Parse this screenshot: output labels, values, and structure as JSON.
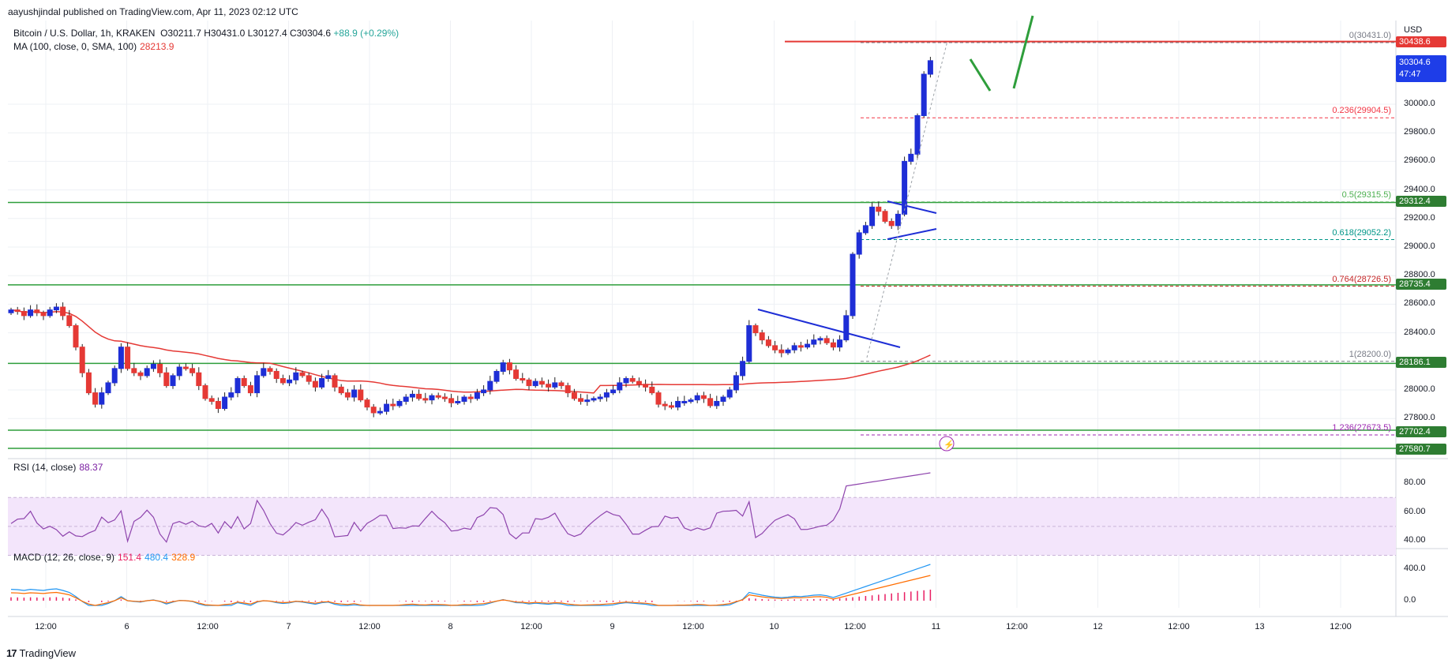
{
  "header": {
    "credit": "aayushjindal published on TradingView.com, Apr 11, 2023 02:12 UTC",
    "symbol": "Bitcoin / U.S. Dollar, 1h, KRAKEN",
    "ohlc": "O30211.7  H30431.0  L30127.4  C30304.6",
    "change": "+88.9 (+0.29%)"
  },
  "indicators": {
    "ma_label": "MA (100, close, 0, SMA, 100)",
    "ma_value": "28213.9",
    "rsi_label": "RSI (14, close)",
    "rsi_value": "88.37",
    "macd_label": "MACD (12, 26, close, 9)",
    "macd_hist": "151.4",
    "macd_line": "480.4",
    "macd_signal": "328.9"
  },
  "footer": {
    "brand": "TradingView",
    "mark": "17"
  },
  "price_axis": {
    "currency": "USD",
    "labels": [
      "30000.0",
      "29800.0",
      "29600.0",
      "29400.0",
      "29200.0",
      "29000.0",
      "28800.0",
      "28600.0",
      "28400.0",
      "28000.0",
      "27800.0"
    ],
    "tags": [
      {
        "text": "30438.6",
        "color": "red"
      },
      {
        "text": "30304.6",
        "text2": "47:47",
        "color": "blue"
      },
      {
        "text": "29312.4",
        "color": "green"
      },
      {
        "text": "28735.4",
        "color": "green"
      },
      {
        "text": "28186.1",
        "color": "green"
      },
      {
        "text": "27702.4",
        "color": "green"
      },
      {
        "text": "27580.7",
        "color": "green"
      }
    ]
  },
  "rsi_axis": [
    "80.00",
    "60.00",
    "40.00"
  ],
  "macd_axis": [
    "400.0",
    "0.0"
  ],
  "time_axis": [
    "12:00",
    "6",
    "12:00",
    "7",
    "12:00",
    "8",
    "12:00",
    "9",
    "12:00",
    "10",
    "12:00",
    "11",
    "12:00",
    "12",
    "12:00",
    "13",
    "12:00"
  ],
  "fib_levels": [
    {
      "label": "0(30431.0)",
      "color": "#787b86"
    },
    {
      "label": "0.236(29904.5)",
      "color": "#f23645"
    },
    {
      "label": "0.5(29315.5)",
      "color": "#4caf50"
    },
    {
      "label": "0.618(29052.2)",
      "color": "#009688"
    },
    {
      "label": "0.764(28726.5)",
      "color": "#c62828"
    },
    {
      "label": "1(28200.0)",
      "color": "#787b86"
    },
    {
      "label": "1.236(27673.5)",
      "color": "#9c27b0"
    }
  ],
  "colors": {
    "bull": "#1e2ed6",
    "bear": "#e53935",
    "ma": "#e53935",
    "support": "#2e9e3b",
    "resistance": "#e53935",
    "rsi": "#8e44ad",
    "macd": "#2196f3",
    "signal": "#ff6d00",
    "histogram": "#e91e63"
  },
  "chart_data": {
    "type": "candlestick",
    "title": "Bitcoin / U.S. Dollar, 1h, KRAKEN",
    "ylabel": "USD",
    "ylim": [
      27450,
      30700
    ],
    "x_ticks": [
      "12:00",
      "6",
      "12:00",
      "7",
      "12:00",
      "8",
      "12:00",
      "9",
      "12:00",
      "10",
      "12:00",
      "11",
      "12:00",
      "12",
      "12:00",
      "13",
      "12:00"
    ],
    "series": [
      {
        "name": "MA (100, close, 0, SMA, 100)",
        "last": 28213.9
      },
      {
        "name": "RSI (14, close)",
        "last": 88.37
      },
      {
        "name": "MACD (12, 26, close, 9)",
        "histogram": 151.4,
        "macd": 480.4,
        "signal": 328.9
      }
    ],
    "horizontal_levels": [
      30438.6,
      29312.4,
      28735.4,
      28186.1,
      27702.4,
      27580.7
    ],
    "fibonacci": [
      {
        "level": 0,
        "price": 30431.0
      },
      {
        "level": 0.236,
        "price": 29904.5
      },
      {
        "level": 0.5,
        "price": 29315.5
      },
      {
        "level": 0.618,
        "price": 29052.2
      },
      {
        "level": 0.764,
        "price": 28726.5
      },
      {
        "level": 1,
        "price": 28200.0
      },
      {
        "level": 1.236,
        "price": 27673.5
      }
    ],
    "last_close": 30304.6,
    "closes": [
      28560,
      28550,
      28520,
      28560,
      28540,
      28520,
      28560,
      28580,
      28520,
      28450,
      28300,
      28120,
      27980,
      27900,
      27980,
      28050,
      28150,
      28300,
      28150,
      28120,
      28100,
      28150,
      28180,
      28120,
      28030,
      28100,
      28160,
      28150,
      28120,
      28030,
      27940,
      27920,
      27870,
      27950,
      27980,
      28080,
      28030,
      27980,
      28100,
      28150,
      28130,
      28080,
      28050,
      28070,
      28120,
      28100,
      28060,
      28020,
      28080,
      28100,
      28020,
      27980,
      27950,
      28000,
      27930,
      27880,
      27840,
      27850,
      27900,
      27890,
      27920,
      27950,
      27970,
      27940,
      27930,
      27960,
      27950,
      27940,
      27910,
      27920,
      27950,
      27940,
      27980,
      28000,
      28060,
      28130,
      28190,
      28140,
      28080,
      28070,
      28030,
      28060,
      28040,
      28020,
      28050,
      28030,
      27980,
      27940,
      27920,
      27930,
      27940,
      27950,
      27980,
      28000,
      28050,
      28080,
      28060,
      28040,
      28020,
      27980,
      27900,
      27890,
      27880,
      27920,
      27920,
      27930,
      27960,
      27940,
      27890,
      27920,
      27950,
      28000,
      28100,
      28200,
      28450,
      28400,
      28350,
      28310,
      28280,
      28260,
      28280,
      28310,
      28300,
      28320,
      28350,
      28360,
      28330,
      28300,
      28350,
      28520,
      28950,
      29100,
      29150,
      29280,
      29250,
      29180,
      29150,
      29230,
      29600,
      29650,
      29920,
      30210,
      30304.6
    ]
  }
}
